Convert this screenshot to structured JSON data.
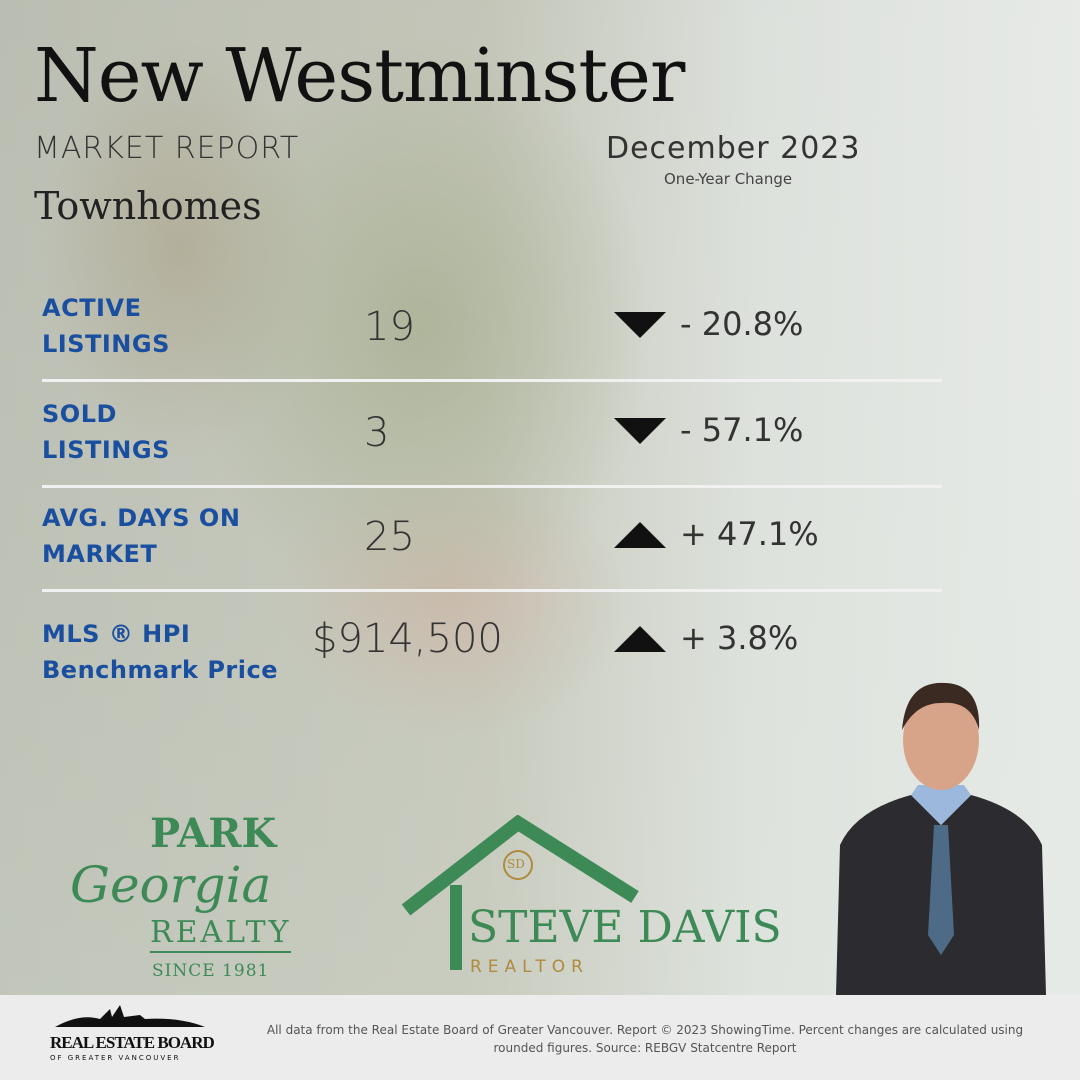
{
  "header": {
    "city": "New Westminster",
    "subtitle": "MARKET REPORT",
    "property_type": "Townhomes",
    "period": "December 2023",
    "change_label": "One-Year Change"
  },
  "metrics": [
    {
      "label_line1": "ACTIVE",
      "label_line2": "LISTINGS",
      "value": "19",
      "direction": "down",
      "change": "- 20.8%"
    },
    {
      "label_line1": "SOLD",
      "label_line2": "LISTINGS",
      "value": "3",
      "direction": "down",
      "change": "- 57.1%"
    },
    {
      "label_line1": "AVG. DAYS ON",
      "label_line2": "MARKET",
      "value": "25",
      "direction": "up",
      "change": "+ 47.1%"
    },
    {
      "label_line1": "MLS ®  HPI",
      "label_line2": "Benchmark Price",
      "value": "$914,500",
      "direction": "up",
      "change": "+ 3.8%"
    }
  ],
  "logos": {
    "park_georgia": {
      "line1": "PARK",
      "line2": "Georgia",
      "line3": "REALTY",
      "since": "SINCE 1981"
    },
    "steve_davis": {
      "monogram": "SD",
      "name": "STEVE DAVIS",
      "title": "REALTOR"
    },
    "rebgv": {
      "line1": "REAL ESTATE BOARD",
      "line2": "OF GREATER VANCOUVER"
    }
  },
  "footer": {
    "disclaimer": "All data from the Real Estate Board of Greater Vancouver. Report © 2023 ShowingTime. Percent changes are calculated using rounded figures. Source: REBGV Statcentre Report"
  },
  "colors": {
    "label_blue": "#1a4fa0",
    "brand_green": "#3e8a57"
  }
}
